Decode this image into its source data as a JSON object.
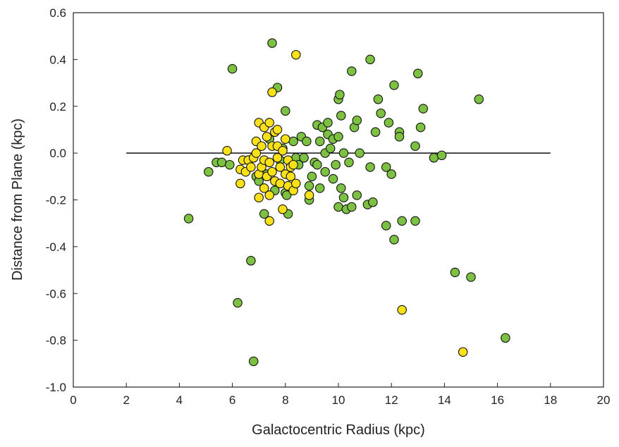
{
  "chart_data": {
    "type": "scatter",
    "xlabel": "Galactocentric Radius (kpc)",
    "ylabel": "Distance from Plane (kpc)",
    "xlim": [
      0,
      20
    ],
    "ylim": [
      -1.0,
      0.6
    ],
    "xticks": [
      "0",
      "2",
      "4",
      "6",
      "8",
      "10",
      "12",
      "14",
      "16",
      "18",
      "20"
    ],
    "yticks": [
      "0.6",
      "0.4",
      "0.2",
      "0.0",
      "-0.2",
      "-0.4",
      "-0.6",
      "-0.8",
      "-1.0"
    ],
    "grid": false,
    "reference_line": {
      "y": 0.0,
      "x_start": 2,
      "x_end": 18
    },
    "series": [
      {
        "color": "#7cc142",
        "points": [
          [
            4.35,
            -0.28
          ],
          [
            5.1,
            -0.08
          ],
          [
            5.4,
            -0.04
          ],
          [
            5.6,
            -0.04
          ],
          [
            5.9,
            -0.05
          ],
          [
            6.0,
            0.36
          ],
          [
            6.2,
            -0.64
          ],
          [
            6.7,
            -0.46
          ],
          [
            6.8,
            -0.89
          ],
          [
            6.9,
            -0.1
          ],
          [
            7.0,
            -0.12
          ],
          [
            7.2,
            -0.26
          ],
          [
            7.3,
            -0.09
          ],
          [
            7.4,
            0.06
          ],
          [
            7.5,
            0.47
          ],
          [
            7.6,
            -0.16
          ],
          [
            7.7,
            0.28
          ],
          [
            7.8,
            -0.03
          ],
          [
            7.9,
            0.02
          ],
          [
            8.0,
            0.18
          ],
          [
            8.0,
            -0.17
          ],
          [
            8.1,
            -0.26
          ],
          [
            8.2,
            -0.05
          ],
          [
            8.3,
            0.05
          ],
          [
            8.4,
            -0.02
          ],
          [
            8.5,
            -0.05
          ],
          [
            8.6,
            0.07
          ],
          [
            8.7,
            -0.02
          ],
          [
            8.8,
            0.05
          ],
          [
            8.9,
            -0.14
          ],
          [
            8.9,
            -0.2
          ],
          [
            9.0,
            -0.1
          ],
          [
            9.1,
            -0.04
          ],
          [
            9.2,
            0.12
          ],
          [
            9.2,
            -0.05
          ],
          [
            9.3,
            -0.15
          ],
          [
            9.3,
            0.05
          ],
          [
            9.4,
            0.11
          ],
          [
            9.5,
            0.0
          ],
          [
            9.5,
            -0.08
          ],
          [
            9.6,
            0.13
          ],
          [
            9.6,
            0.08
          ],
          [
            9.7,
            0.02
          ],
          [
            9.8,
            -0.11
          ],
          [
            9.8,
            0.06
          ],
          [
            9.9,
            -0.05
          ],
          [
            10.0,
            0.23
          ],
          [
            10.0,
            0.07
          ],
          [
            10.0,
            -0.23
          ],
          [
            10.05,
            0.25
          ],
          [
            10.1,
            0.16
          ],
          [
            10.1,
            -0.15
          ],
          [
            10.2,
            0.0
          ],
          [
            10.2,
            -0.19
          ],
          [
            10.3,
            -0.24
          ],
          [
            10.4,
            -0.04
          ],
          [
            10.5,
            0.35
          ],
          [
            10.5,
            -0.23
          ],
          [
            10.6,
            0.11
          ],
          [
            10.7,
            0.14
          ],
          [
            10.7,
            -0.18
          ],
          [
            10.8,
            0.0
          ],
          [
            11.1,
            -0.22
          ],
          [
            11.2,
            0.4
          ],
          [
            11.2,
            -0.06
          ],
          [
            11.3,
            -0.21
          ],
          [
            11.4,
            0.09
          ],
          [
            11.5,
            0.23
          ],
          [
            11.6,
            0.17
          ],
          [
            11.8,
            -0.06
          ],
          [
            11.8,
            -0.31
          ],
          [
            11.9,
            0.13
          ],
          [
            12.0,
            -0.09
          ],
          [
            12.1,
            0.29
          ],
          [
            12.1,
            -0.37
          ],
          [
            12.3,
            0.09
          ],
          [
            12.3,
            0.07
          ],
          [
            12.4,
            -0.29
          ],
          [
            12.9,
            0.03
          ],
          [
            12.9,
            -0.29
          ],
          [
            13.0,
            0.34
          ],
          [
            13.1,
            0.11
          ],
          [
            13.2,
            0.19
          ],
          [
            13.6,
            -0.02
          ],
          [
            13.9,
            -0.01
          ],
          [
            14.4,
            -0.51
          ],
          [
            15.0,
            -0.53
          ],
          [
            15.3,
            0.23
          ],
          [
            16.3,
            -0.79
          ],
          [
            8.05,
            -0.18
          ]
        ]
      },
      {
        "color": "#f9e11a",
        "points": [
          [
            5.8,
            0.01
          ],
          [
            6.3,
            -0.07
          ],
          [
            6.3,
            -0.13
          ],
          [
            6.4,
            -0.03
          ],
          [
            6.5,
            -0.08
          ],
          [
            6.6,
            -0.03
          ],
          [
            6.7,
            -0.06
          ],
          [
            6.8,
            -0.02
          ],
          [
            6.9,
            0.0
          ],
          [
            6.9,
            0.05
          ],
          [
            7.0,
            -0.09
          ],
          [
            7.0,
            0.13
          ],
          [
            7.0,
            -0.19
          ],
          [
            7.1,
            -0.06
          ],
          [
            7.1,
            0.03
          ],
          [
            7.2,
            0.11
          ],
          [
            7.2,
            -0.03
          ],
          [
            7.2,
            -0.15
          ],
          [
            7.3,
            0.07
          ],
          [
            7.3,
            -0.1
          ],
          [
            7.4,
            0.13
          ],
          [
            7.4,
            -0.04
          ],
          [
            7.4,
            -0.18
          ],
          [
            7.4,
            -0.29
          ],
          [
            7.5,
            0.03
          ],
          [
            7.5,
            -0.08
          ],
          [
            7.5,
            0.26
          ],
          [
            7.6,
            -0.12
          ],
          [
            7.6,
            0.09
          ],
          [
            7.7,
            -0.02
          ],
          [
            7.7,
            0.03
          ],
          [
            7.7,
            0.1
          ],
          [
            7.8,
            -0.06
          ],
          [
            7.8,
            -0.13
          ],
          [
            7.9,
            -0.24
          ],
          [
            7.9,
            0.01
          ],
          [
            8.0,
            -0.09
          ],
          [
            8.0,
            0.06
          ],
          [
            8.1,
            -0.03
          ],
          [
            8.1,
            -0.14
          ],
          [
            8.2,
            -0.06
          ],
          [
            8.2,
            -0.1
          ],
          [
            8.3,
            -0.16
          ],
          [
            8.3,
            -0.05
          ],
          [
            8.4,
            -0.13
          ],
          [
            8.4,
            0.42
          ],
          [
            8.9,
            -0.18
          ],
          [
            12.4,
            -0.67
          ],
          [
            14.7,
            -0.85
          ]
        ]
      }
    ]
  }
}
